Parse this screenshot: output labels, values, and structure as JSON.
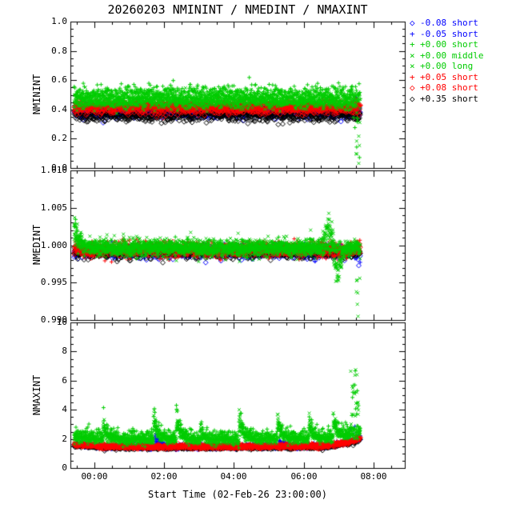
{
  "chart_data": {
    "type": "scatter",
    "title": "20260203 NMININT / NMEDINT / NMAXINT",
    "xlabel": "Start Time (02-Feb-26 23:00:00)",
    "legend_position": "right",
    "x_range": [
      -0.69,
      8.9
    ],
    "x_major": 2,
    "x_minor": 0.5,
    "x_ticks": [
      {
        "v": 0,
        "label": "00:00"
      },
      {
        "v": 2,
        "label": "02:00"
      },
      {
        "v": 4,
        "label": "04:00"
      },
      {
        "v": 6,
        "label": "06:00"
      },
      {
        "v": 8,
        "label": "08:00"
      }
    ],
    "data_t_start": -0.58,
    "data_t_end": 7.62,
    "sample_step": 0.01,
    "seed": 20260203,
    "series": [
      {
        "id": "s0",
        "legend": "-0.08 short",
        "color": "#0000ff",
        "symbol": "diamond"
      },
      {
        "id": "s1",
        "legend": "-0.05 short",
        "color": "#0000ff",
        "symbol": "plus"
      },
      {
        "id": "s2",
        "legend": "+0.00 short",
        "color": "#00cc00",
        "symbol": "plus"
      },
      {
        "id": "s3",
        "legend": "+0.00 middle",
        "color": "#00cc00",
        "symbol": "x"
      },
      {
        "id": "s4",
        "legend": "+0.00 long",
        "color": "#00cc00",
        "symbol": "x"
      },
      {
        "id": "s5",
        "legend": "+0.05 short",
        "color": "#ff0000",
        "symbol": "plus"
      },
      {
        "id": "s6",
        "legend": "+0.08 short",
        "color": "#ff0000",
        "symbol": "diamond"
      },
      {
        "id": "s7",
        "legend": "+0.35 short",
        "color": "#000000",
        "symbol": "diamond"
      }
    ],
    "draw_order": [
      "s1",
      "s0",
      "s7",
      "s6",
      "s5",
      "s4",
      "s3",
      "s2"
    ],
    "panels": [
      {
        "ylabel": "NMININT",
        "ylim": [
          0.0,
          1.0
        ],
        "y_minor": 0.05,
        "y_major": 0.2,
        "y_ticks": [
          {
            "v": 0.0,
            "label": "0.0"
          },
          {
            "v": 0.2,
            "label": "0.2"
          },
          {
            "v": 0.4,
            "label": "0.4"
          },
          {
            "v": 0.6,
            "label": "0.6"
          },
          {
            "v": 0.8,
            "label": "0.8"
          },
          {
            "v": 1.0,
            "label": "1.0"
          }
        ],
        "levels": {
          "s0": {
            "base": 0.38,
            "noise": 0.02
          },
          "s1": {
            "base": 0.4,
            "noise": 0.02
          },
          "s2": {
            "base": 0.5,
            "noise": 0.035
          },
          "s3": {
            "base": 0.47,
            "noise": 0.03
          },
          "s4": {
            "base": 0.455,
            "noise": 0.025
          },
          "s5": {
            "base": 0.43,
            "noise": 0.018
          },
          "s6": {
            "base": 0.405,
            "noise": 0.018
          },
          "s7": {
            "base": 0.36,
            "noise": 0.022
          }
        },
        "events": [
          {
            "type": "spread",
            "series": [
              "s2",
              "s3",
              "s4"
            ],
            "t0": 7.42,
            "t1": 7.62,
            "ymin": 0.03,
            "ymax": 0.42,
            "prob": 0.22
          }
        ]
      },
      {
        "ylabel": "NMEDINT",
        "ylim": [
          0.99,
          1.01
        ],
        "y_minor": 0.001,
        "y_major": 0.005,
        "y_ticks": [
          {
            "v": 0.99,
            "label": "0.990"
          },
          {
            "v": 0.995,
            "label": "0.995"
          },
          {
            "v": 1.0,
            "label": "1.000"
          },
          {
            "v": 1.005,
            "label": "1.005"
          },
          {
            "v": 1.01,
            "label": "1.010"
          }
        ],
        "levels": {
          "s0": {
            "base": 0.9991,
            "noise": 0.0004
          },
          "s1": {
            "base": 0.9992,
            "noise": 0.0004
          },
          "s2": {
            "base": 0.9997,
            "noise": 0.0005
          },
          "s3": {
            "base": 0.9997,
            "noise": 0.0006
          },
          "s4": {
            "base": 0.9996,
            "noise": 0.0005
          },
          "s5": {
            "base": 0.9995,
            "noise": 0.0005
          },
          "s6": {
            "base": 0.9994,
            "noise": 0.0004
          },
          "s7": {
            "base": 0.999,
            "noise": 0.0004
          }
        },
        "events": [
          {
            "type": "decay",
            "series": [
              "s2",
              "s3",
              "s4"
            ],
            "t0": -0.58,
            "amp": 0.0045,
            "tau": 0.12,
            "dur": 0.55
          },
          {
            "type": "gauss",
            "series": [
              "s3",
              "s4"
            ],
            "center": 6.75,
            "sigma": 0.13,
            "amp": 0.0042
          },
          {
            "type": "gauss",
            "series": [
              "s3",
              "s4"
            ],
            "center": 6.97,
            "sigma": 0.1,
            "amp": -0.0055
          },
          {
            "type": "spread",
            "series": [
              "s3",
              "s4"
            ],
            "t0": 7.5,
            "t1": 7.62,
            "ymin": 0.99,
            "ymax": 0.9985,
            "prob": 0.35
          },
          {
            "type": "spread",
            "series": [
              "s0",
              "s1"
            ],
            "t0": 7.54,
            "t1": 7.62,
            "ymin": 0.996,
            "ymax": 0.9985,
            "prob": 0.25
          }
        ]
      },
      {
        "ylabel": "NMAXINT",
        "ylim": [
          0,
          10
        ],
        "y_minor": 0.5,
        "y_major": 2,
        "y_ticks": [
          {
            "v": 0,
            "label": "0"
          },
          {
            "v": 2,
            "label": "2"
          },
          {
            "v": 4,
            "label": "4"
          },
          {
            "v": 6,
            "label": "6"
          },
          {
            "v": 8,
            "label": "8"
          },
          {
            "v": 10,
            "label": "10"
          }
        ],
        "trend": {
          "t": [
            -0.6,
            0.4,
            3.0,
            6.6,
            7.3,
            7.62
          ],
          "dy": [
            0.15,
            0.0,
            0.0,
            0.05,
            0.3,
            0.6
          ]
        },
        "levels": {
          "s0": {
            "base": 1.45,
            "noise": 0.07
          },
          "s1": {
            "base": 1.48,
            "noise": 0.08
          },
          "s2": {
            "base": 2.15,
            "noise": 0.25
          },
          "s3": {
            "base": 1.95,
            "noise": 0.15
          },
          "s4": {
            "base": 1.9,
            "noise": 0.12
          },
          "s5": {
            "base": 1.5,
            "noise": 0.08
          },
          "s6": {
            "base": 1.45,
            "noise": 0.07
          },
          "s7": {
            "base": 1.4,
            "noise": 0.07
          }
        },
        "events": [
          {
            "type": "decay",
            "series": [
              "s2",
              "s3",
              "s4"
            ],
            "t0": 0.25,
            "amp": 1.7,
            "tau": 0.1,
            "dur": 0.5
          },
          {
            "type": "decay",
            "series": [
              "s2",
              "s3",
              "s4"
            ],
            "t0": 1.7,
            "amp": 2.3,
            "tau": 0.12,
            "dur": 0.6
          },
          {
            "type": "decay",
            "series": [
              "s2",
              "s3",
              "s4"
            ],
            "t0": 2.35,
            "amp": 2.3,
            "tau": 0.12,
            "dur": 0.6
          },
          {
            "type": "decay",
            "series": [
              "s2",
              "s3",
              "s4"
            ],
            "t0": 3.05,
            "amp": 0.9,
            "tau": 0.1,
            "dur": 0.4
          },
          {
            "type": "decay",
            "series": [
              "s2",
              "s3",
              "s4"
            ],
            "t0": 4.15,
            "amp": 2.2,
            "tau": 0.12,
            "dur": 0.6
          },
          {
            "type": "decay",
            "series": [
              "s2",
              "s3",
              "s4"
            ],
            "t0": 5.25,
            "amp": 1.8,
            "tau": 0.1,
            "dur": 0.5
          },
          {
            "type": "decay",
            "series": [
              "s2",
              "s3",
              "s4"
            ],
            "t0": 6.15,
            "amp": 1.9,
            "tau": 0.1,
            "dur": 0.5
          },
          {
            "type": "decay",
            "series": [
              "s2",
              "s3",
              "s4"
            ],
            "t0": 6.85,
            "amp": 2.2,
            "tau": 0.1,
            "dur": 0.5
          },
          {
            "type": "decay",
            "series": [
              "s0",
              "s1"
            ],
            "t0": 1.75,
            "amp": 0.9,
            "tau": 0.12,
            "dur": 0.4
          },
          {
            "type": "decay",
            "series": [
              "s1"
            ],
            "t0": 5.3,
            "amp": 0.7,
            "tau": 0.1,
            "dur": 0.3
          },
          {
            "type": "spread",
            "series": [
              "s2",
              "s3",
              "s4"
            ],
            "t0": 7.35,
            "t1": 7.6,
            "ymin": 1.9,
            "ymax": 7.2,
            "prob": 0.5
          },
          {
            "type": "spread",
            "series": [
              "s0",
              "s1"
            ],
            "t0": 7.3,
            "t1": 7.6,
            "ymin": 1.8,
            "ymax": 3.0,
            "prob": 0.15
          }
        ]
      }
    ]
  }
}
